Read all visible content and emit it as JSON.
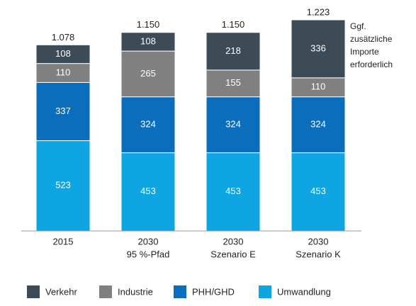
{
  "chart_data": {
    "type": "stacked-bar",
    "categories": [
      [
        "2015"
      ],
      [
        "2030",
        "95 %-Pfad"
      ],
      [
        "2030",
        "Szenario E"
      ],
      [
        "2030",
        "Szenario K"
      ]
    ],
    "series": [
      {
        "name": "Verkehr",
        "color": "#3c4b55",
        "values": [
          108,
          108,
          218,
          336
        ]
      },
      {
        "name": "Industrie",
        "color": "#808080",
        "values": [
          110,
          265,
          155,
          110
        ]
      },
      {
        "name": "PHH/GHD",
        "color": "#0a6ebd",
        "values": [
          337,
          324,
          324,
          324
        ]
      },
      {
        "name": "Umwandlung",
        "color": "#0ea5e2",
        "values": [
          523,
          453,
          453,
          453
        ]
      }
    ],
    "totals": {
      "values": [
        1078,
        1150,
        1150,
        1223
      ],
      "value_labels": [
        "1.078",
        "1.150",
        "1.150",
        "1.223"
      ]
    },
    "annotation": [
      "Ggf.",
      "zusätzliche",
      "Importe",
      "erforderlich"
    ],
    "legend": "bottom"
  }
}
